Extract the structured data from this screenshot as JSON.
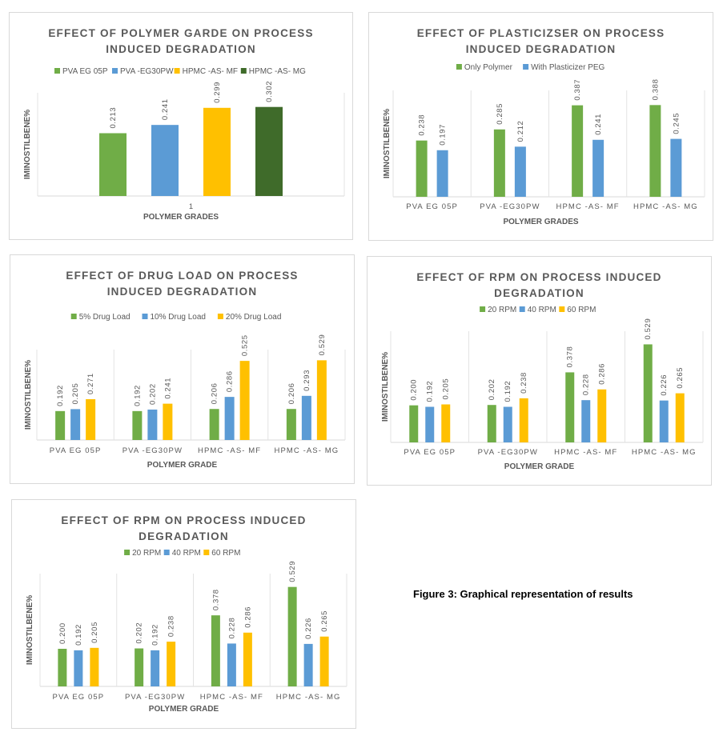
{
  "figure_caption": "Figure 3: Graphical representation of results",
  "colors": {
    "green": "#70AD47",
    "blue": "#5B9BD5",
    "gold": "#FFC000",
    "darkgreen": "#3F6B2A"
  },
  "chart_data": [
    {
      "type": "bar",
      "title_lines": [
        "EFFECT OF POLYMER GARDE ON PROCESS",
        "INDUCED DEGRADATION"
      ],
      "xlabel": "POLYMER GRADES",
      "ylabel": "IMINOSTILBENE%",
      "categories": [
        "1"
      ],
      "series": [
        {
          "name": "PVA EG 05P",
          "values": [
            0.213
          ],
          "color": "#70AD47"
        },
        {
          "name": "PVA -EG30PW",
          "values": [
            0.241
          ],
          "color": "#5B9BD5"
        },
        {
          "name": "HPMC -AS- MF",
          "values": [
            0.299
          ],
          "color": "#FFC000"
        },
        {
          "name": "HPMC -AS- MG",
          "values": [
            0.302
          ],
          "color": "#3F6B2A"
        }
      ],
      "ylim": [
        0,
        0.35
      ],
      "grid": false,
      "legend": "top"
    },
    {
      "type": "bar",
      "title_lines": [
        "EFFECT OF PLASTICIZSER ON PROCESS",
        "INDUCED DEGRADATION"
      ],
      "xlabel": "POLYMER GRADES",
      "ylabel": "IMINOSTILBENE%",
      "categories": [
        "PVA EG 05P",
        "PVA -EG30PW",
        "HPMC -AS- MF",
        "HPMC -AS- MG"
      ],
      "series": [
        {
          "name": "Only Polymer",
          "values": [
            0.238,
            0.285,
            0.387,
            0.388
          ],
          "color": "#70AD47"
        },
        {
          "name": "With Plasticizer PEG",
          "values": [
            0.197,
            0.212,
            0.241,
            0.245
          ],
          "color": "#5B9BD5"
        }
      ],
      "ylim": [
        0,
        0.45
      ],
      "grid": false,
      "legend": "top"
    },
    {
      "type": "bar",
      "title_lines": [
        "EFFECT OF DRUG LOAD ON PROCESS",
        "INDUCED DEGRADATION"
      ],
      "xlabel": "POLYMER GRADE",
      "ylabel": "IMINOSTILBENE%",
      "categories": [
        "PVA EG 05P",
        "PVA -EG30PW",
        "HPMC -AS- MF",
        "HPMC -AS- MG"
      ],
      "series": [
        {
          "name": "5% Drug  Load",
          "values": [
            0.192,
            0.192,
            0.206,
            0.206
          ],
          "color": "#70AD47"
        },
        {
          "name": "10% Drug  Load",
          "values": [
            0.205,
            0.202,
            0.286,
            0.293
          ],
          "color": "#5B9BD5"
        },
        {
          "name": "20% Drug  Load",
          "values": [
            0.271,
            0.241,
            0.525,
            0.529
          ],
          "color": "#FFC000"
        }
      ],
      "ylim": [
        0,
        0.6
      ],
      "grid": false,
      "legend": "top"
    },
    {
      "type": "bar",
      "title_lines": [
        "EFFECT OF RPM ON PROCESS INDUCED",
        "DEGRADATION"
      ],
      "xlabel": "POLYMER GRADE",
      "ylabel": "IMINOSTILBENE%",
      "categories": [
        "PVA EG 05P",
        "PVA -EG30PW",
        "HPMC -AS- MF",
        "HPMC -AS- MG"
      ],
      "series": [
        {
          "name": "20 RPM",
          "values": [
            0.2,
            0.202,
            0.378,
            0.529
          ],
          "color": "#70AD47"
        },
        {
          "name": "40 RPM",
          "values": [
            0.192,
            0.192,
            0.228,
            0.226
          ],
          "color": "#5B9BD5"
        },
        {
          "name": "60 RPM",
          "values": [
            0.205,
            0.238,
            0.286,
            0.265
          ],
          "color": "#FFC000"
        }
      ],
      "ylim": [
        0,
        0.6
      ],
      "grid": false,
      "legend": "top"
    },
    {
      "type": "bar",
      "title_lines": [
        "EFFECT OF RPM ON PROCESS INDUCED",
        "DEGRADATION"
      ],
      "xlabel": "POLYMER GRADE",
      "ylabel": "IMINOSTILBENE%",
      "categories": [
        "PVA EG 05P",
        "PVA -EG30PW",
        "HPMC -AS- MF",
        "HPMC -AS- MG"
      ],
      "series": [
        {
          "name": "20 RPM",
          "values": [
            0.2,
            0.202,
            0.378,
            0.529
          ],
          "color": "#70AD47"
        },
        {
          "name": "40 RPM",
          "values": [
            0.192,
            0.192,
            0.228,
            0.226
          ],
          "color": "#5B9BD5"
        },
        {
          "name": "60 RPM",
          "values": [
            0.205,
            0.238,
            0.286,
            0.265
          ],
          "color": "#FFC000"
        }
      ],
      "ylim": [
        0,
        0.6
      ],
      "grid": false,
      "legend": "top"
    }
  ]
}
